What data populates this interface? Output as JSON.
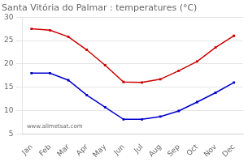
{
  "chart_data": {
    "type": "line",
    "title": "Santa Vitória do Palmar : temperatures (°C)",
    "categories": [
      "Jan",
      "Feb",
      "Mar",
      "Apr",
      "May",
      "Jun",
      "Jul",
      "Aug",
      "Sep",
      "Oct",
      "Nov",
      "Dec"
    ],
    "series": [
      {
        "color": "#cc0000",
        "marker": "square",
        "values": [
          27.5,
          27.2,
          25.8,
          23.0,
          19.7,
          16.1,
          16.0,
          16.7,
          18.5,
          20.5,
          23.5,
          26.0
        ]
      },
      {
        "color": "#0000cc",
        "marker": "square",
        "values": [
          18.0,
          18.0,
          16.5,
          13.3,
          10.7,
          8.1,
          8.1,
          8.7,
          9.9,
          11.8,
          13.8,
          16.0
        ]
      }
    ],
    "ylim": [
      5,
      30
    ],
    "yticks": [
      5,
      10,
      15,
      20,
      25,
      30
    ],
    "grid": "y",
    "annotation": "www.allmetsat.com"
  }
}
